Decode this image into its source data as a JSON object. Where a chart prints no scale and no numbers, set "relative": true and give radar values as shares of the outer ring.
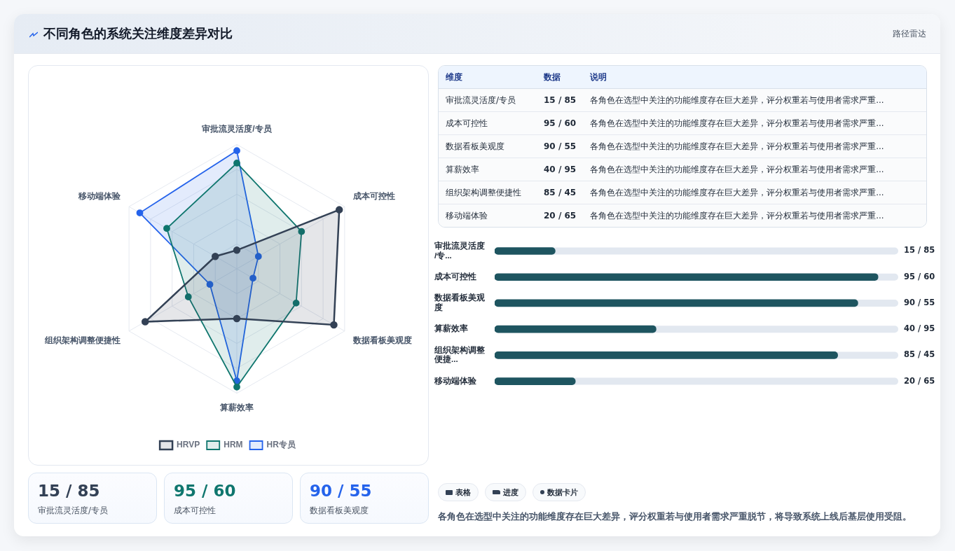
{
  "chart_data": [
    {
      "type": "other",
      "title": "不同角色的系统关注维度差异对比",
      "subtitle": "路径雷达"
    },
    {
      "type": "radar",
      "categories": [
        "审批流灵活度/专员",
        "成本可控性",
        "数据看板美观度",
        "算薪效率",
        "组织架构调整便捷性",
        "移动端体验"
      ],
      "relative": true,
      "legend": "bottom",
      "marker": "circle",
      "series": [
        {
          "name": "HRVP",
          "color": "#334155",
          "values": [
            0.15,
            0.95,
            0.9,
            0.4,
            0.85,
            0.2
          ]
        },
        {
          "name": "HRM",
          "color": "#0f766e",
          "values": [
            0.85,
            0.6,
            0.55,
            0.95,
            0.45,
            0.65
          ]
        },
        {
          "name": "HR专员",
          "color": "#2563eb",
          "values": [
            0.95,
            0.2,
            0.15,
            0.9,
            0.25,
            0.9
          ]
        }
      ]
    },
    {
      "type": "other",
      "categories": [
        "审批流灵活度/专员",
        "成本可控性",
        "数据看板美观度",
        "算薪效率",
        "组织架构调整便捷性",
        "移动端体验"
      ],
      "value_labels": [
        "15 / 85",
        "95 / 60",
        "90 / 55",
        "40 / 95",
        "85 / 45",
        "20 / 65"
      ],
      "annotations": [
        "维度",
        "数据",
        "说明",
        "各角色在选型中关注的功能维度存在巨大差异，评分权重若与使用者需求严重...",
        "各角色在选型中关注的功能维度存在巨大差异，评分权重若与使用者需求严重...",
        "各角色在选型中关注的功能维度存在巨大差异，评分权重若与使用者需求严重...",
        "各角色在选型中关注的功能维度存在巨大差异，评分权重若与使用者需求严重...",
        "各角色在选型中关注的功能维度存在巨大差异，评分权重若与使用者需求严重...",
        "各角色在选型中关注的功能维度存在巨大差异，评分权重若与使用者需求严重..."
      ]
    },
    {
      "type": "bar",
      "orientation": "horizontal",
      "categories": [
        "审批流灵活度/专...",
        "成本可控性",
        "数据看板美观度",
        "算薪效率",
        "组织架构调整便捷...",
        "移动端体验"
      ],
      "values": [
        15,
        95,
        90,
        40,
        85,
        20
      ],
      "value_labels": [
        "15 / 85",
        "95 / 60",
        "90 / 55",
        "40 / 95",
        "85 / 45",
        "20 / 65"
      ],
      "color": "#1e5560",
      "xlim": [
        0,
        100
      ],
      "tick_labels": "y",
      "annotations": [
        "表格",
        "进度",
        "数据卡片",
        "各角色在选型中关注的功能维度存在巨大差异，评分权重若与使用者需求严重脱节，将导致系统上线后基层使用受阻。"
      ]
    },
    {
      "type": "other",
      "categories": [
        "审批流灵活度/专员",
        "成本可控性",
        "数据看板美观度"
      ],
      "value_labels": [
        "15 / 85",
        "95 / 60",
        "90 / 55"
      ]
    }
  ]
}
